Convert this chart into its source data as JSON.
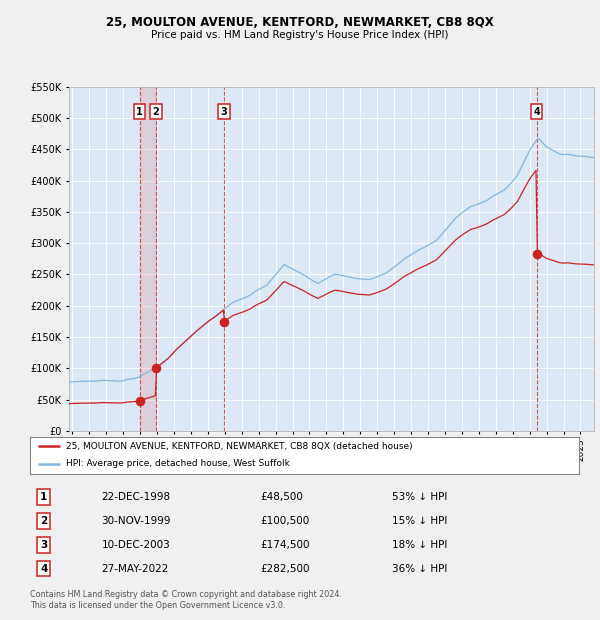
{
  "title": "25, MOULTON AVENUE, KENTFORD, NEWMARKET, CB8 8QX",
  "subtitle": "Price paid vs. HM Land Registry's House Price Index (HPI)",
  "bg_color": "#f0f0f0",
  "plot_bg_color": "#dce8f5",
  "hpi_color": "#85b8e0",
  "price_color": "#cc2222",
  "transactions": [
    {
      "num": 1,
      "date_str": "22-DEC-1998",
      "year": 1998.97,
      "price": 48500,
      "label": "53% ↓ HPI"
    },
    {
      "num": 2,
      "date_str": "30-NOV-1999",
      "year": 1999.92,
      "price": 100500,
      "label": "15% ↓ HPI"
    },
    {
      "num": 3,
      "date_str": "10-DEC-2003",
      "year": 2003.95,
      "price": 174500,
      "label": "18% ↓ HPI"
    },
    {
      "num": 4,
      "date_str": "27-MAY-2022",
      "year": 2022.41,
      "price": 282500,
      "label": "36% ↓ HPI"
    }
  ],
  "legend_entry1": "25, MOULTON AVENUE, KENTFORD, NEWMARKET, CB8 8QX (detached house)",
  "legend_entry2": "HPI: Average price, detached house, West Suffolk",
  "footnote": "Contains HM Land Registry data © Crown copyright and database right 2024.\nThis data is licensed under the Open Government Licence v3.0.",
  "ylim": [
    0,
    550000
  ],
  "xlim_start": 1994.8,
  "xlim_end": 2025.8
}
